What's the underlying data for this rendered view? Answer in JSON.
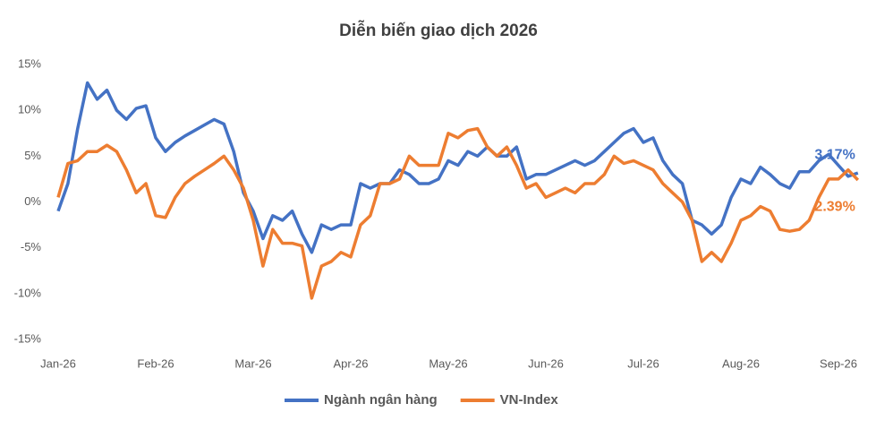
{
  "chart_data": {
    "type": "line",
    "title": "Diễn biến giao dịch 2026",
    "categories": [
      "Jan-26",
      null,
      null,
      null,
      null,
      null,
      null,
      null,
      null,
      null,
      "Feb-26",
      null,
      null,
      null,
      null,
      null,
      null,
      null,
      null,
      null,
      "Mar-26",
      null,
      null,
      null,
      null,
      null,
      null,
      null,
      null,
      null,
      "Apr-26",
      null,
      null,
      null,
      null,
      null,
      null,
      null,
      null,
      null,
      "May-26",
      null,
      null,
      null,
      null,
      null,
      null,
      null,
      null,
      null,
      "Jun-26",
      null,
      null,
      null,
      null,
      null,
      null,
      null,
      null,
      null,
      "Jul-26",
      null,
      null,
      null,
      null,
      null,
      null,
      null,
      null,
      null,
      "Aug-26",
      null,
      null,
      null,
      null,
      null,
      null,
      null,
      null,
      null,
      "Sep-26",
      null,
      null
    ],
    "series": [
      {
        "name": "Ngành ngân hàng",
        "color": "#4472c4",
        "values": [
          -1,
          2,
          8,
          13,
          11.2,
          12.2,
          10,
          9,
          10.2,
          10.5,
          7,
          5.5,
          6.5,
          7.2,
          7.8,
          8.4,
          9,
          8.5,
          5.5,
          1,
          -1,
          -4,
          -1.5,
          -2,
          -1,
          -3.5,
          -5.5,
          -2.5,
          -3,
          -2.5,
          -2.5,
          2,
          1.5,
          2,
          2,
          3.5,
          3,
          2,
          2,
          2.5,
          4.5,
          4,
          5.5,
          5,
          6,
          5,
          5,
          6,
          2.5,
          3,
          3,
          3.5,
          4,
          4.5,
          4,
          4.5,
          5.5,
          6.5,
          7.5,
          8,
          6.5,
          7,
          4.5,
          3,
          2,
          -2,
          -2.5,
          -3.5,
          -2.5,
          0.5,
          2.5,
          2,
          3.8,
          3,
          2,
          1.5,
          3.3,
          3.3,
          4.5,
          5.2,
          4,
          2.8,
          3.17
        ],
        "value_labels": [
          null,
          null,
          null,
          null,
          null,
          null,
          null,
          null,
          null,
          null,
          null,
          null,
          null,
          null,
          null,
          null,
          null,
          null,
          null,
          null,
          null,
          null,
          null,
          null,
          null,
          null,
          null,
          null,
          null,
          null,
          null,
          null,
          null,
          null,
          null,
          null,
          null,
          null,
          null,
          null,
          null,
          null,
          null,
          null,
          null,
          null,
          null,
          null,
          null,
          null,
          null,
          null,
          null,
          null,
          null,
          null,
          null,
          null,
          null,
          null,
          null,
          null,
          null,
          null,
          null,
          null,
          null,
          null,
          null,
          null,
          null,
          null,
          null,
          null,
          null,
          null,
          null,
          null,
          null,
          null,
          null,
          null,
          "3.17%"
        ]
      },
      {
        "name": "VN-Index",
        "color": "#ed7d31",
        "values": [
          0.5,
          4.2,
          4.5,
          5.5,
          5.5,
          6.2,
          5.5,
          3.5,
          1,
          2,
          -1.5,
          -1.7,
          0.5,
          2,
          2.8,
          3.5,
          4.2,
          5,
          3.5,
          1.5,
          -2,
          -7,
          -3,
          -4.5,
          -4.5,
          -4.8,
          -10.5,
          -7,
          -6.5,
          -5.5,
          -6,
          -2.5,
          -1.5,
          2,
          2,
          2.5,
          5,
          4,
          4,
          4,
          7.5,
          7,
          7.8,
          8,
          6,
          5,
          6,
          4,
          1.5,
          2,
          0.5,
          1,
          1.5,
          1,
          2,
          2,
          3,
          5,
          4.2,
          4.5,
          4,
          3.5,
          2,
          1,
          0,
          -2,
          -6.5,
          -5.5,
          -6.5,
          -4.5,
          -2,
          -1.5,
          -0.5,
          -1,
          -3,
          -3.2,
          -3,
          -2,
          0.5,
          2.5,
          2.5,
          3.5,
          2.39
        ],
        "value_labels": [
          null,
          null,
          null,
          null,
          null,
          null,
          null,
          null,
          null,
          null,
          null,
          null,
          null,
          null,
          null,
          null,
          null,
          null,
          null,
          null,
          null,
          null,
          null,
          null,
          null,
          null,
          null,
          null,
          null,
          null,
          null,
          null,
          null,
          null,
          null,
          null,
          null,
          null,
          null,
          null,
          null,
          null,
          null,
          null,
          null,
          null,
          null,
          null,
          null,
          null,
          null,
          null,
          null,
          null,
          null,
          null,
          null,
          null,
          null,
          null,
          null,
          null,
          null,
          null,
          null,
          null,
          null,
          null,
          null,
          null,
          null,
          null,
          null,
          null,
          null,
          null,
          null,
          null,
          null,
          null,
          null,
          null,
          "2.39%"
        ]
      }
    ],
    "ylim": [
      -15,
      15
    ],
    "yticks": [
      {
        "value": -15,
        "label": "-15%"
      },
      {
        "value": -10,
        "label": "-10%"
      },
      {
        "value": -5,
        "label": "-5%"
      },
      {
        "value": 0,
        "label": "0%"
      },
      {
        "value": 5,
        "label": "5%"
      },
      {
        "value": 10,
        "label": "10%"
      },
      {
        "value": 15,
        "label": "15%"
      }
    ],
    "grid": false,
    "legend": "bottom"
  }
}
